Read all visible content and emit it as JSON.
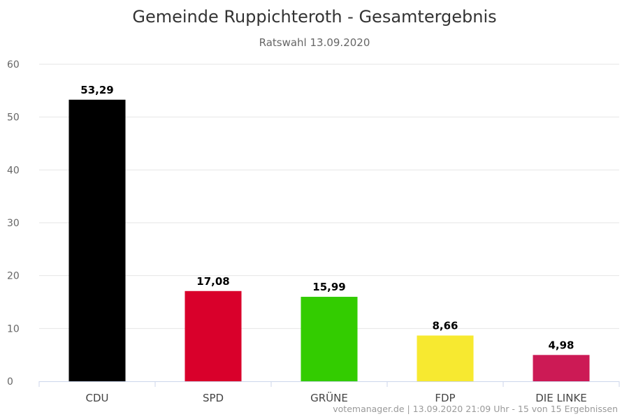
{
  "chart_data": {
    "type": "bar",
    "title": "Gemeinde Ruppichteroth - Gesamtergebnis",
    "subtitle": "Ratswahl 13.09.2020",
    "xlabel": "",
    "ylabel": "",
    "categories": [
      "CDU",
      "SPD",
      "GRÜNE",
      "FDP",
      "DIE LINKE"
    ],
    "values": [
      53.29,
      17.08,
      15.99,
      8.66,
      4.98
    ],
    "value_labels": [
      "53,29",
      "17,08",
      "15,99",
      "8,66",
      "4,98"
    ],
    "colors": [
      "#000000",
      "#d9002b",
      "#33cc00",
      "#f7e930",
      "#cc1a55"
    ],
    "ylim": [
      0,
      60
    ],
    "yticks": [
      0,
      10,
      20,
      30,
      40,
      50,
      60
    ],
    "grid": true,
    "legend": "none"
  },
  "credits": "votemanager.de | 13.09.2020 21:09 Uhr - 15 von 15 Ergebnissen"
}
